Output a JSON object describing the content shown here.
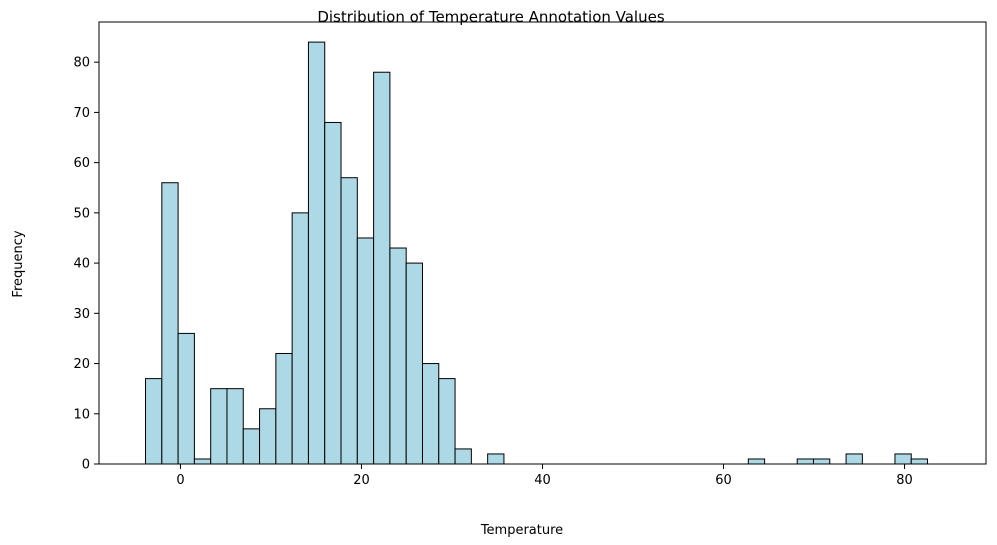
{
  "chart_data": {
    "type": "bar",
    "title": "Distribution of Temperature Annotation Values",
    "xlabel": "Temperature",
    "ylabel": "Frequency",
    "xlim": [
      -9.0,
      89.0
    ],
    "ylim": [
      0,
      88
    ],
    "xticks": [
      0,
      20,
      40,
      60,
      80
    ],
    "yticks": [
      0,
      10,
      20,
      30,
      40,
      50,
      60,
      70,
      80
    ],
    "grid": false,
    "bar_color": "#add8e6",
    "edge_color": "#000000",
    "bin_start": -3.86,
    "bin_width": 1.8,
    "counts": [
      17,
      56,
      26,
      1,
      15,
      15,
      7,
      11,
      22,
      50,
      84,
      68,
      57,
      45,
      78,
      43,
      40,
      20,
      17,
      3,
      0,
      2,
      0,
      0,
      0,
      0,
      0,
      0,
      0,
      0,
      0,
      0,
      0,
      0,
      0,
      0,
      0,
      1,
      0,
      0,
      1,
      1,
      0,
      2,
      0,
      0,
      2,
      1
    ]
  }
}
